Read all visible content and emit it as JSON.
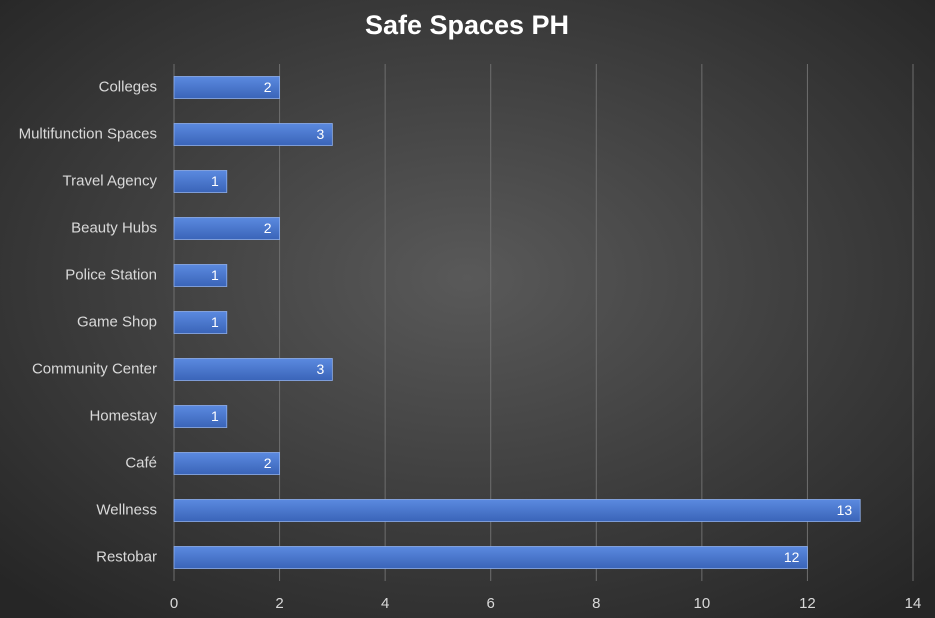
{
  "chart_data": {
    "type": "bar",
    "orientation": "horizontal",
    "title": "Safe Spaces PH",
    "categories": [
      "Colleges",
      "Multifunction Spaces",
      "Travel Agency",
      "Beauty Hubs",
      "Police Station",
      "Game Shop",
      "Community Center",
      "Homestay",
      "Café",
      "Wellness",
      "Restobar"
    ],
    "values": [
      2,
      3,
      1,
      2,
      1,
      1,
      3,
      1,
      2,
      13,
      12
    ],
    "color": "#4472c4",
    "xlim": [
      0,
      14
    ],
    "xticks": [
      0,
      2,
      4,
      6,
      8,
      10,
      12,
      14
    ],
    "grid": true
  }
}
